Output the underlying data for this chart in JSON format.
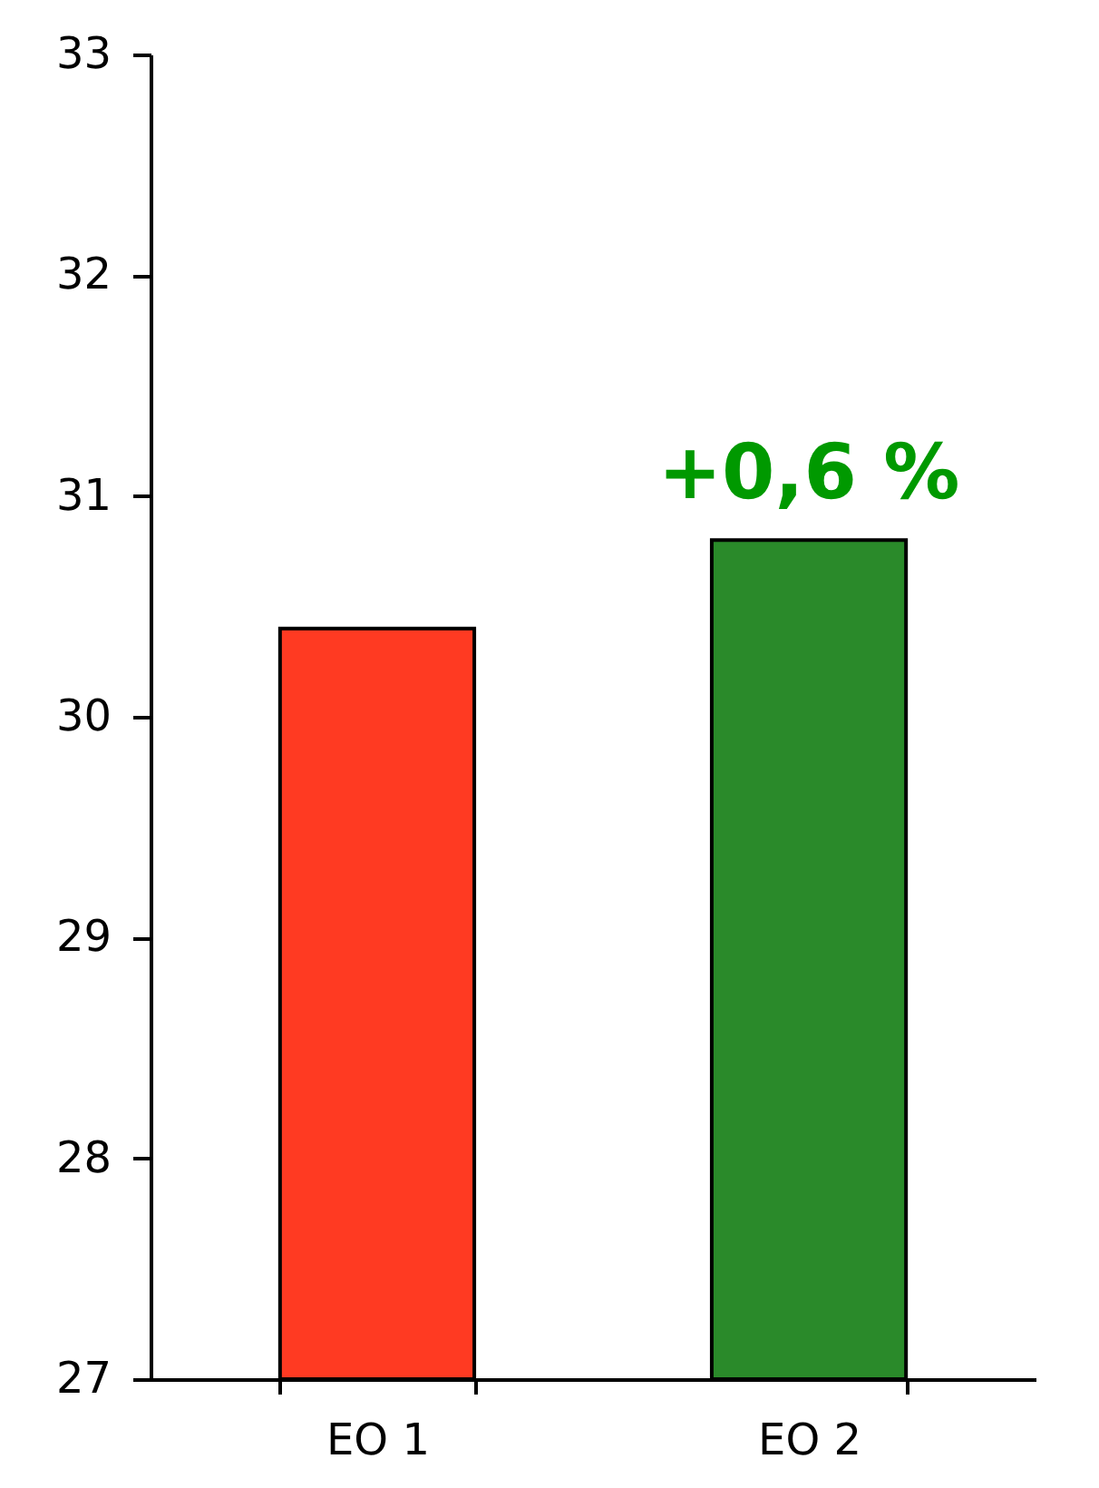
{
  "chart_data": {
    "type": "bar",
    "categories": [
      "EO 1",
      "EO 2"
    ],
    "values": [
      30.4,
      30.8
    ],
    "colors": [
      "#ff3a22",
      "#2a8a2a"
    ],
    "ylim": [
      27,
      33
    ],
    "yticks": [
      27,
      28,
      29,
      30,
      31,
      32,
      33
    ],
    "annotations": [
      {
        "text": "+0,6 %",
        "x": "EO 2",
        "y": 30.8
      }
    ],
    "grid": false
  }
}
